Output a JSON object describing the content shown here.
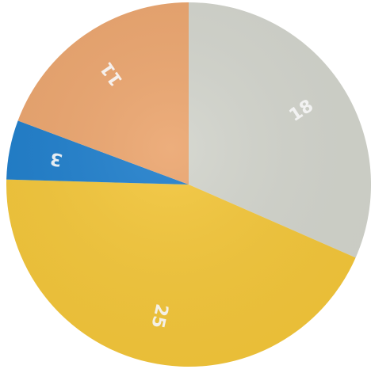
{
  "chart_data": {
    "type": "pie",
    "title": "",
    "start_angle_deg": 0,
    "direction": "clockwise",
    "legend": "none",
    "slices": [
      {
        "label": "18",
        "value": 18,
        "color": "#d2d4cc"
      },
      {
        "label": "25",
        "value": 25,
        "color": "#f3c63a"
      },
      {
        "label": "3",
        "value": 3,
        "color": "#1f7ecb"
      },
      {
        "label": "11",
        "value": 11,
        "color": "#eba56e"
      }
    ]
  }
}
